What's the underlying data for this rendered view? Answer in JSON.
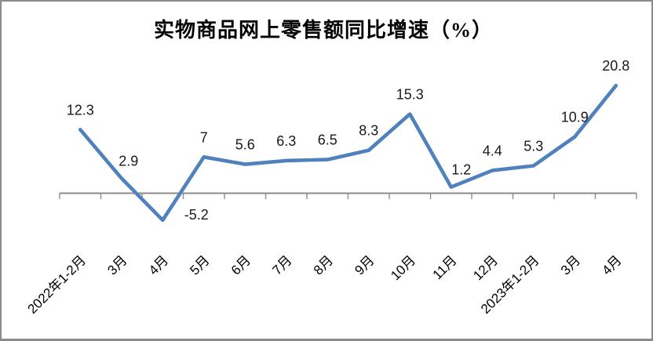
{
  "title": "实物商品网上零售额同比增速（%）",
  "colors": {
    "series_line": "#4F81BD",
    "axis": "#8C8C8C",
    "data_label": "#1A1A1A",
    "axis_label": "#000000",
    "frame_border": "#8A8A8A",
    "background": "#FFFFFF"
  },
  "chart_data": {
    "type": "line",
    "title": "实物商品网上零售额同比增速（%）",
    "categories": [
      "2022年1-2月",
      "3月",
      "4月",
      "5月",
      "6月",
      "7月",
      "8月",
      "9月",
      "10月",
      "11月",
      "12月",
      "2023年1-2月",
      "3月",
      "4月"
    ],
    "values": [
      12.3,
      2.9,
      -5.2,
      7,
      5.6,
      6.3,
      6.5,
      8.3,
      15.3,
      1.2,
      4.4,
      5.3,
      10.9,
      20.8
    ],
    "value_labels": [
      "12.3",
      "2.9",
      "-5.2",
      "7",
      "5.6",
      "6.3",
      "6.5",
      "8.3",
      "15.3",
      "1.2",
      "4.4",
      "5.3",
      "10.9",
      "20.8"
    ],
    "xlabel": "",
    "ylabel": "",
    "ylim": [
      -8,
      24
    ],
    "grid": false,
    "legend": "none",
    "y_axis_visible": false,
    "x_axis": {
      "zero_line": true,
      "tick_marks": "outside",
      "label_rotation_deg": -45
    }
  }
}
